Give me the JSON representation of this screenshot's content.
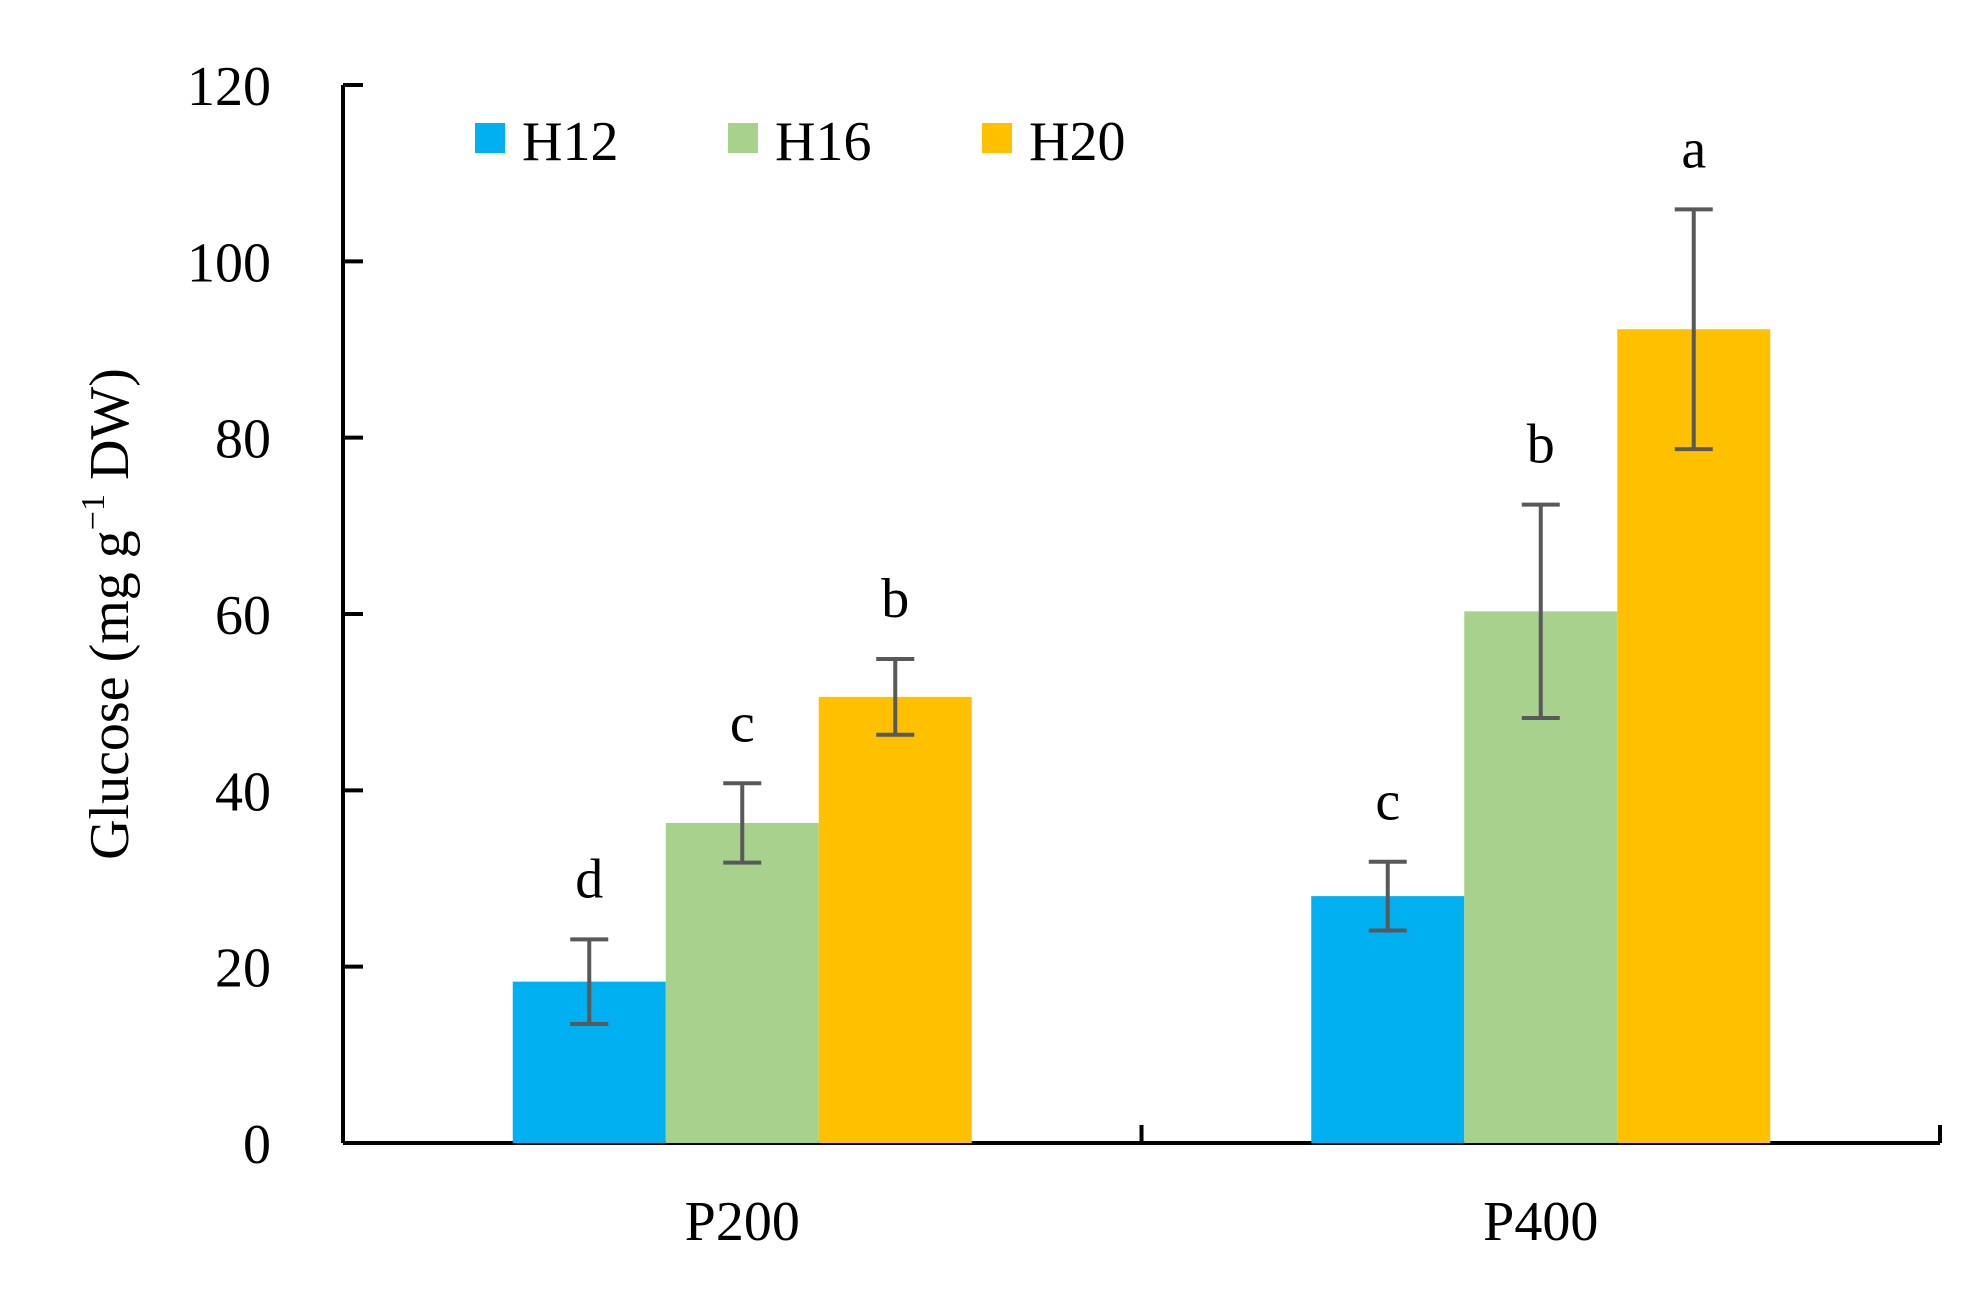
{
  "chart_data": {
    "type": "bar",
    "title": "",
    "xlabel": "",
    "ylabel": {
      "main": "Glucose (mg g",
      "superscript": "−1",
      "suffix": " DW)"
    },
    "ylim": [
      0,
      120
    ],
    "yticks": [
      0,
      20,
      40,
      60,
      80,
      100,
      120
    ],
    "grid": false,
    "legend_position": "top-left",
    "categories": [
      "P200",
      "P400"
    ],
    "series": [
      {
        "name": "H12",
        "color": "#00b0f0",
        "values": [
          18.3,
          28.0
        ],
        "errors": [
          4.8,
          3.9
        ],
        "letters": [
          "d",
          "c"
        ]
      },
      {
        "name": "H16",
        "color": "#a9d18e",
        "values": [
          36.3,
          60.3
        ],
        "errors": [
          4.5,
          12.1
        ],
        "letters": [
          "c",
          "b"
        ]
      },
      {
        "name": "H20",
        "color": "#ffc000",
        "values": [
          50.6,
          92.3
        ],
        "errors": [
          4.3,
          13.6
        ],
        "letters": [
          "b",
          "a"
        ]
      }
    ],
    "error_bar_color": "#595959"
  }
}
